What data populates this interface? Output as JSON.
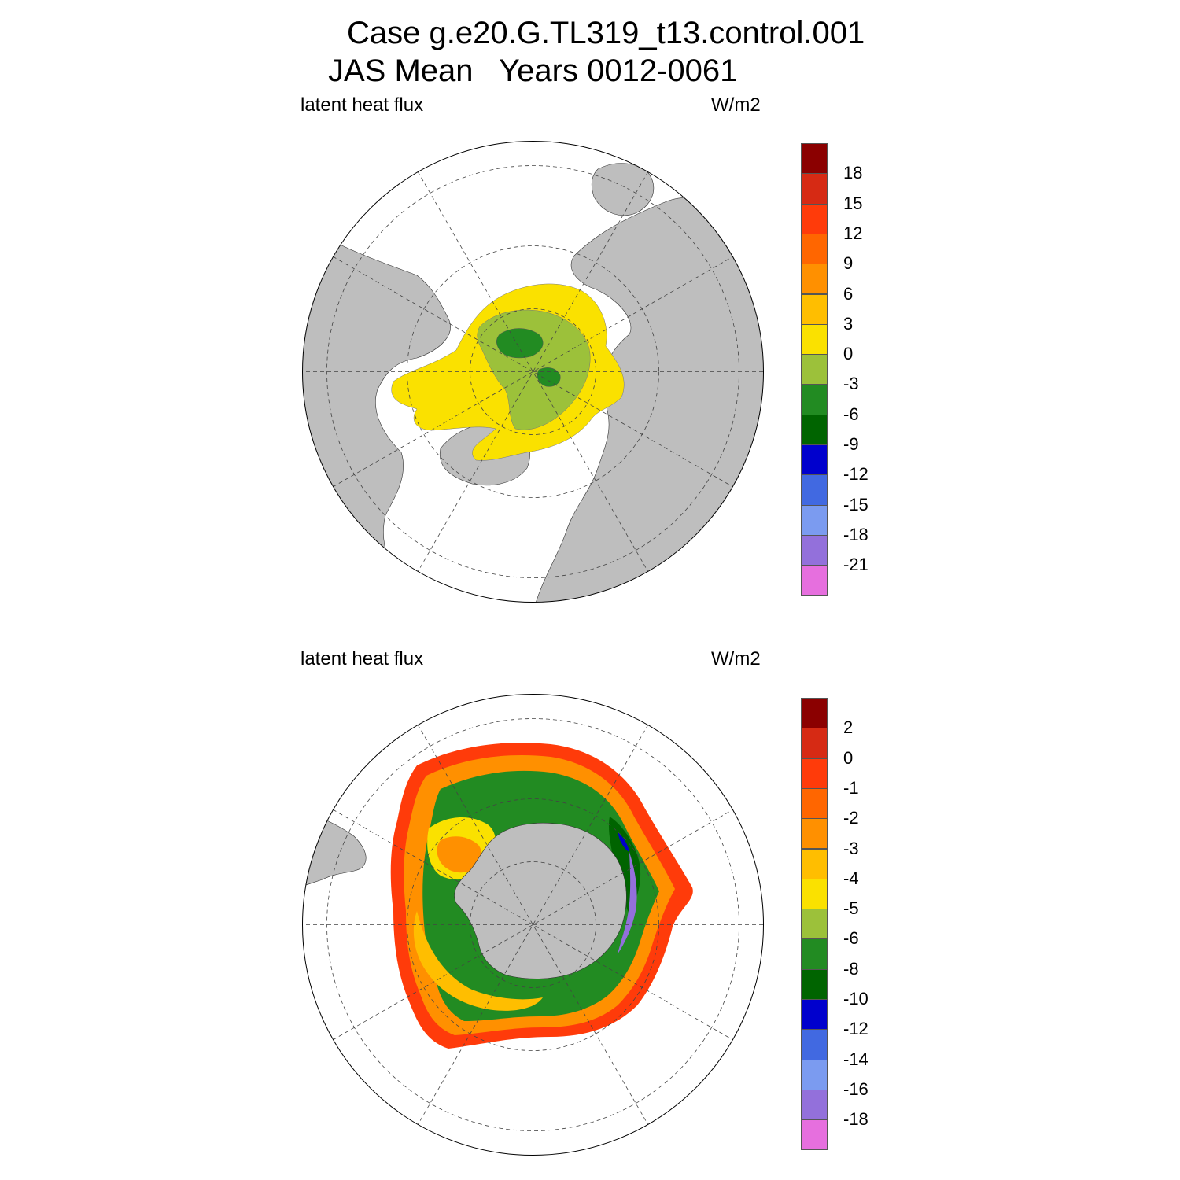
{
  "title": {
    "line1": "Case g.e20.G.TL319_t13.control.001",
    "line2": "JAS Mean   Years 0012-0061"
  },
  "panels": [
    {
      "left_label": "latent heat flux",
      "right_label": "W/m2",
      "hemisphere": "north",
      "colorbar": {
        "colors": [
          "#8B0000",
          "#D62A14",
          "#FF3B0A",
          "#FF6600",
          "#FF9000",
          "#FFBE00",
          "#FAE100",
          "#9CC13A",
          "#228B22",
          "#006400",
          "#0000CD",
          "#4169E1",
          "#7B9BF0",
          "#9370DB",
          "#E66FDE"
        ],
        "labels": [
          "18",
          "15",
          "12",
          "9",
          "6",
          "3",
          "0",
          "-3",
          "-6",
          "-9",
          "-12",
          "-15",
          "-18",
          "-21"
        ]
      }
    },
    {
      "left_label": "latent heat flux",
      "right_label": "W/m2",
      "hemisphere": "south",
      "colorbar": {
        "colors": [
          "#8B0000",
          "#D62A14",
          "#FF3B0A",
          "#FF6600",
          "#FF9000",
          "#FFBE00",
          "#FAE100",
          "#9CC13A",
          "#228B22",
          "#006400",
          "#0000CD",
          "#4169E1",
          "#7B9BF0",
          "#9370DB",
          "#E66FDE"
        ],
        "labels": [
          "2",
          "0",
          "-1",
          "-2",
          "-3",
          "-4",
          "-5",
          "-6",
          "-8",
          "-10",
          "-12",
          "-14",
          "-16",
          "-18"
        ]
      }
    }
  ],
  "map_colors": {
    "land": "#bebebe",
    "ocean": "#ffffff",
    "grid": "#444444"
  }
}
